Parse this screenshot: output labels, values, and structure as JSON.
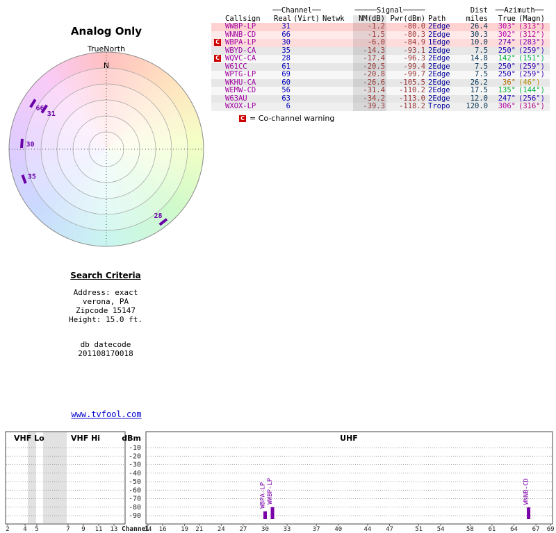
{
  "link_text": "www.tvfool.com",
  "colors": {
    "callsign": "#a000a0",
    "channel_num": "#0000bb",
    "signal_val": "#993333",
    "path_val": "#000099",
    "miles_val": "#003355",
    "warn_red": "#cc0000",
    "bar_purple": "#7a00a8",
    "marker_purple": "#6a00a8",
    "link_blue": "#0000cc"
  },
  "search_criteria": {
    "title": "Search Criteria",
    "lines": [
      "Address: exact",
      "verona, PA",
      "Zipcode 15147",
      "Height: 15.0 ft."
    ],
    "db_label": "db datecode",
    "db_code": "201108170018"
  },
  "table": {
    "group_headers": {
      "channel": {
        "pre": "══",
        "label": "Channel",
        "post": "══"
      },
      "signal": {
        "pre": "═════",
        "label": "Signal",
        "post": "═════"
      },
      "dist": "Dist",
      "azimuth": {
        "pre": "══",
        "label": "Azimuth",
        "post": "══"
      }
    },
    "columns": [
      "Callsign",
      "Real",
      "(Virt)",
      "Netwk",
      "NM(dB)",
      "Pwr(dBm)",
      "Path",
      "miles",
      "True",
      "(Magn)"
    ],
    "legend_c": "C",
    "legend_text": "= Co-channel warning",
    "rows": [
      {
        "warn": false,
        "callsign": "WWBP-LP",
        "real": "31",
        "virt": "",
        "netwk": "",
        "nm": "-1.2",
        "pwr": "-80.0",
        "path": "2Edge",
        "miles": "26.4",
        "az_true": "303°",
        "az_magn": "(313°)",
        "bg": "#ffd2d2"
      },
      {
        "warn": false,
        "callsign": "WNNB-CD",
        "real": "66",
        "virt": "",
        "netwk": "",
        "nm": "-1.5",
        "pwr": "-80.3",
        "path": "2Edge",
        "miles": "30.3",
        "az_true": "302°",
        "az_magn": "(312°)",
        "bg": "#ffe9e9"
      },
      {
        "warn": true,
        "callsign": "WBPA-LP",
        "real": "30",
        "virt": "",
        "netwk": "",
        "nm": "-6.0",
        "pwr": "-84.9",
        "path": "1Edge",
        "miles": "10.0",
        "az_true": "274°",
        "az_magn": "(283°)",
        "bg": "#ffdcdc"
      },
      {
        "warn": false,
        "callsign": "WBYD-CA",
        "real": "35",
        "virt": "",
        "netwk": "",
        "nm": "-14.3",
        "pwr": "-93.1",
        "path": "2Edge",
        "miles": "7.5",
        "az_true": "250°",
        "az_magn": "(259°)",
        "bg": "#e7e7e7"
      },
      {
        "warn": true,
        "callsign": "WQVC-CA",
        "real": "28",
        "virt": "",
        "netwk": "",
        "nm": "-17.4",
        "pwr": "-96.3",
        "path": "2Edge",
        "miles": "14.8",
        "az_true": "142°",
        "az_magn": "(151°)",
        "bg": "#f7f7f7"
      },
      {
        "warn": false,
        "callsign": "W61CC",
        "real": "61",
        "virt": "",
        "netwk": "",
        "nm": "-20.5",
        "pwr": "-99.4",
        "path": "2Edge",
        "miles": "7.5",
        "az_true": "250°",
        "az_magn": "(259°)",
        "bg": "#e7e7e7"
      },
      {
        "warn": false,
        "callsign": "WPTG-LP",
        "real": "69",
        "virt": "",
        "netwk": "",
        "nm": "-20.8",
        "pwr": "-99.7",
        "path": "2Edge",
        "miles": "7.5",
        "az_true": "250°",
        "az_magn": "(259°)",
        "bg": "#f7f7f7"
      },
      {
        "warn": false,
        "callsign": "WKHU-CA",
        "real": "60",
        "virt": "",
        "netwk": "",
        "nm": "-26.6",
        "pwr": "-105.5",
        "path": "2Edge",
        "miles": "26.2",
        "az_true": "36°",
        "az_magn": "(46°)",
        "bg": "#e7e7e7"
      },
      {
        "warn": false,
        "callsign": "WEMW-CD",
        "real": "56",
        "virt": "",
        "netwk": "",
        "nm": "-31.4",
        "pwr": "-110.2",
        "path": "2Edge",
        "miles": "17.5",
        "az_true": "135°",
        "az_magn": "(144°)",
        "bg": "#f7f7f7"
      },
      {
        "warn": false,
        "callsign": "W63AU",
        "real": "63",
        "virt": "",
        "netwk": "",
        "nm": "-34.2",
        "pwr": "-113.0",
        "path": "2Edge",
        "miles": "12.0",
        "az_true": "247°",
        "az_magn": "(256°)",
        "bg": "#e7e7e7"
      },
      {
        "warn": false,
        "callsign": "WXOX-LP",
        "real": "6",
        "virt": "",
        "netwk": "",
        "nm": "-39.3",
        "pwr": "-118.2",
        "path": "Tropo",
        "miles": "120.0",
        "az_true": "306°",
        "az_magn": "(316°)",
        "bg": "#efefef"
      }
    ]
  },
  "chart_data": [
    {
      "type": "polar",
      "title": "Analog Only",
      "orientation_label": "TrueNorth",
      "north_label": "N",
      "markers": [
        {
          "channel": "66",
          "azimuth_deg": 302,
          "radius_frac": 0.89
        },
        {
          "channel": "31",
          "azimuth_deg": 303,
          "radius_frac": 0.76
        },
        {
          "channel": "30",
          "azimuth_deg": 274,
          "radius_frac": 0.87
        },
        {
          "channel": "35",
          "azimuth_deg": 250,
          "radius_frac": 0.9
        },
        {
          "channel": "28",
          "azimuth_deg": 142,
          "radius_frac": 0.95
        }
      ]
    },
    {
      "type": "bar",
      "ylabel": "dBm",
      "xlabel": "Channel",
      "ylim": [
        -90,
        -10
      ],
      "ytick_labels": [
        "-10",
        "-20",
        "-30",
        "-40",
        "-50",
        "-60",
        "-70",
        "-80",
        "-90"
      ],
      "sections": [
        {
          "label": "VHF Lo"
        },
        {
          "label": "VHF Hi"
        },
        {
          "label": "UHF"
        }
      ],
      "vhf_channels": [
        "2",
        "4",
        "5",
        "7",
        "9",
        "11",
        "13"
      ],
      "uhf_channels": [
        "14",
        "16",
        "19",
        "21",
        "24",
        "27",
        "30",
        "33",
        "37",
        "40",
        "44",
        "47",
        "51",
        "54",
        "58",
        "61",
        "64",
        "67",
        "69"
      ],
      "signals": [
        {
          "callsign": "WBPA-LP",
          "channel": 30,
          "power_dbm": -84.9
        },
        {
          "callsign": "WWBP-LP",
          "channel": 31,
          "power_dbm": -80.0
        },
        {
          "callsign": "WNNB-CD",
          "channel": 66,
          "power_dbm": -80.3
        }
      ]
    }
  ]
}
